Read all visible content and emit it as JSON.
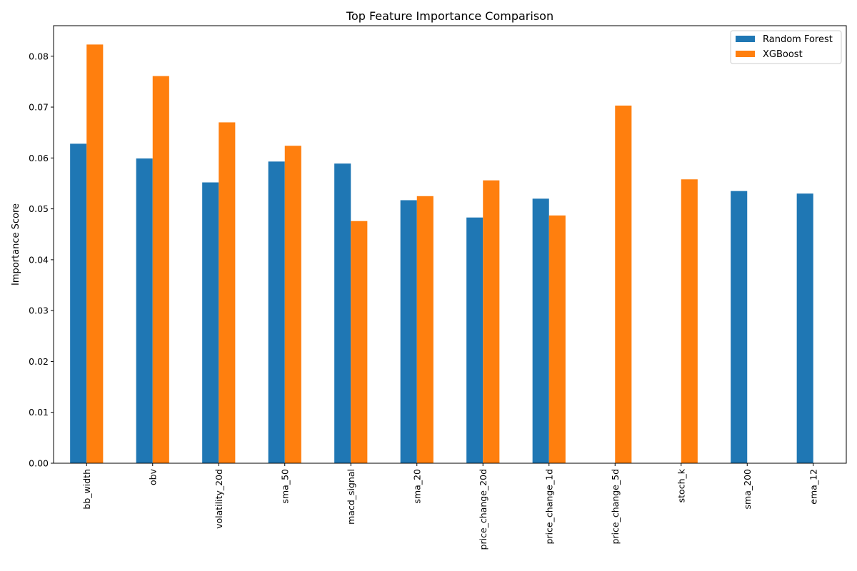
{
  "chart_data": {
    "type": "bar",
    "title": "Top Feature Importance Comparison",
    "xlabel": "",
    "ylabel": "Importance Score",
    "ylim": [
      0,
      0.086
    ],
    "yticks": [
      0.0,
      0.01,
      0.02,
      0.03,
      0.04,
      0.05,
      0.06,
      0.07,
      0.08
    ],
    "ytick_labels": [
      "0.00",
      "0.01",
      "0.02",
      "0.03",
      "0.04",
      "0.05",
      "0.06",
      "0.07",
      "0.08"
    ],
    "grid": false,
    "legend": "top-right",
    "categories": [
      "bb_width",
      "obv",
      "volatility_20d",
      "sma_50",
      "macd_signal",
      "sma_20",
      "price_change_20d",
      "price_change_1d",
      "price_change_5d",
      "stoch_k",
      "sma_200",
      "ema_12"
    ],
    "series": [
      {
        "name": "Random Forest",
        "color": "#1f77b4",
        "values": [
          0.0628,
          0.0599,
          0.0552,
          0.0593,
          0.0589,
          0.0517,
          0.0483,
          0.052,
          0,
          0,
          0.0535,
          0.053
        ]
      },
      {
        "name": "XGBoost",
        "color": "#ff7f0e",
        "values": [
          0.0823,
          0.0761,
          0.067,
          0.0624,
          0.0476,
          0.0525,
          0.0556,
          0.0487,
          0.0703,
          0.0558,
          0,
          0
        ]
      }
    ]
  }
}
